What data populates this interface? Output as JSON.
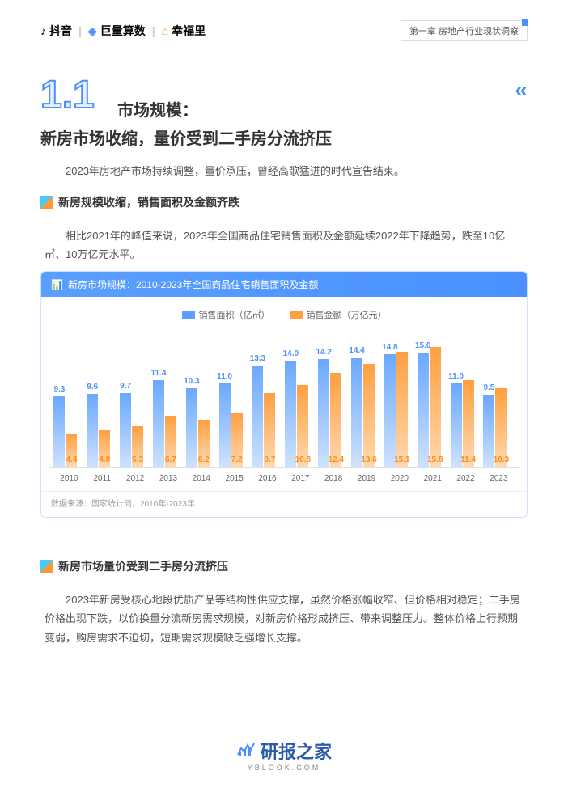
{
  "header": {
    "logo1": "抖音",
    "logo2": "巨量算数",
    "logo3": "幸福里",
    "chapter": "第一章  房地产行业现状洞察"
  },
  "section": {
    "number": "1.1",
    "title_main": "市场规模：",
    "title_sub": "新房市场收缩，量价受到二手房分流挤压"
  },
  "para1": "2023年房地产市场持续调整，量价承压，曾经高歌猛进的时代宣告结束。",
  "subheader1": "新房规模收缩，销售面积及金额齐跌",
  "para2": "相比2021年的峰值来说，2023年全国商品住宅销售面积及金额延续2022年下降趋势，跌至10亿㎡、10万亿元水平。",
  "chart": {
    "type": "bar",
    "title": "新房市场规模：2010-2023年全国商品住宅销售面积及金额",
    "legend": [
      {
        "label": "销售面积（亿㎡）",
        "color": "#5a9fff"
      },
      {
        "label": "销售金额（万亿元）",
        "color": "#ff9f40"
      }
    ],
    "categories": [
      "2010",
      "2011",
      "2012",
      "2013",
      "2014",
      "2015",
      "2016",
      "2017",
      "2018",
      "2019",
      "2020",
      "2021",
      "2022",
      "2023"
    ],
    "series_area": [
      9.3,
      9.6,
      9.7,
      11.4,
      10.3,
      11.0,
      13.3,
      14.0,
      14.2,
      14.4,
      14.8,
      15.0,
      11.0,
      9.5
    ],
    "series_value": [
      4.4,
      4.8,
      5.3,
      6.7,
      6.2,
      7.2,
      9.7,
      10.8,
      12.4,
      13.6,
      15.1,
      15.8,
      11.4,
      10.3
    ],
    "max_scale": 16,
    "bar_colors": {
      "area": "#5a9fff",
      "value": "#ff9f40"
    },
    "label_color_area": "#4a90ff",
    "label_color_value": "#ff8c1a",
    "source": "数据来源：国家统计局，2010年-2023年"
  },
  "subheader2": "新房市场量价受到二手房分流挤压",
  "para3": "2023年新房受核心地段优质产品等结构性供应支撑，虽然价格涨幅收窄、但价格相对稳定；二手房价格出现下跌，以价换量分流新房需求规模，对新房价格形成挤压、带来调整压力。整体价格上行预期变弱，购房需求不迫切，短期需求规模缺乏强增长支撑。",
  "footer": {
    "main": "研报之家",
    "sub": "YBLOOK.COM"
  }
}
